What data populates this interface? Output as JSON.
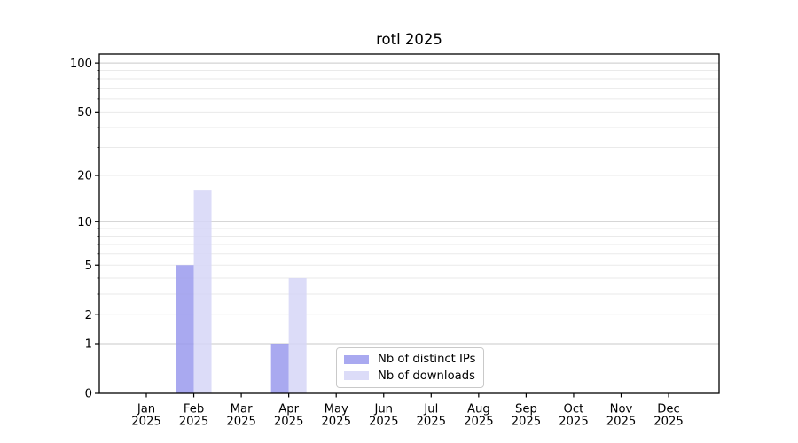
{
  "window": {
    "background": "#ffffff"
  },
  "chart_data": {
    "type": "bar",
    "title": "rotl 2025",
    "categories": [
      "Jan 2025",
      "Feb 2025",
      "Mar 2025",
      "Apr 2025",
      "May 2025",
      "Jun 2025",
      "Jul 2025",
      "Aug 2025",
      "Sep 2025",
      "Oct 2025",
      "Nov 2025",
      "Dec 2025"
    ],
    "series": [
      {
        "name": "Nb of distinct IPs",
        "color": "#a9a9f0",
        "values": [
          0,
          5,
          0,
          1,
          0,
          0,
          0,
          0,
          0,
          0,
          0,
          0
        ]
      },
      {
        "name": "Nb of downloads",
        "color": "#dcdcf8",
        "values": [
          0,
          16,
          0,
          4,
          0,
          0,
          0,
          0,
          0,
          0,
          0,
          0
        ]
      }
    ],
    "xlabel": "",
    "ylabel": "",
    "y_axis": {
      "scale": "log1p",
      "ylim": [
        0,
        113.5
      ],
      "major_ticks": [
        0,
        1,
        2,
        5,
        10,
        20,
        50,
        100
      ],
      "decade_gridlines": [
        1,
        10,
        100
      ],
      "minor_gridlines": [
        2,
        3,
        4,
        5,
        6,
        7,
        8,
        9,
        20,
        30,
        40,
        50,
        60,
        70,
        80,
        90
      ]
    },
    "grid": true,
    "legend": {
      "location": "inside-bottom-center"
    },
    "colors": {
      "axis": "#000000",
      "text": "#000000",
      "grid_minor": "#eaeaea",
      "grid_major": "#c9c9c9",
      "legend_border": "#c9c9c9"
    }
  }
}
